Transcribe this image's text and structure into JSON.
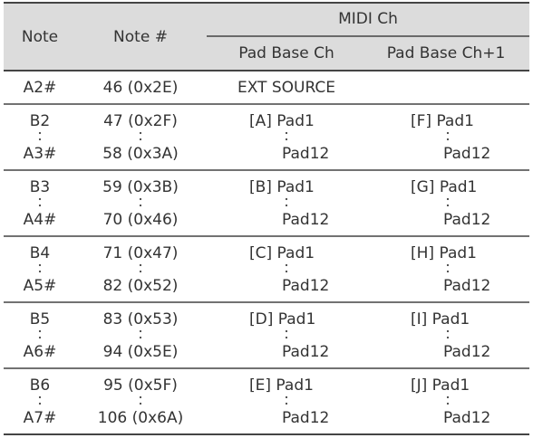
{
  "table": {
    "header": {
      "note": "Note",
      "note_num": "Note #",
      "midi_ch": "MIDI Ch",
      "pad_base_ch": "Pad Base Ch",
      "pad_base_ch1": "Pad Base Ch+1"
    },
    "first_row": [
      "A2#",
      "46 (0x2E)",
      "EXT SOURCE"
    ],
    "rows": [
      [
        "B2",
        "A3#",
        "47 (0x2F)",
        "58 (0x3A)",
        "[A] Pad1",
        "Pad12",
        "[F] Pad1",
        "Pad12"
      ],
      [
        "B3",
        "A4#",
        "59 (0x3B)",
        "70 (0x46)",
        "[B] Pad1",
        "Pad12",
        "[G] Pad1",
        "Pad12"
      ],
      [
        "B4",
        "A5#",
        "71 (0x47)",
        "82 (0x52)",
        "[C] Pad1",
        "Pad12",
        "[H] Pad1",
        "Pad12"
      ],
      [
        "B5",
        "A6#",
        "83 (0x53)",
        "94 (0x5E)",
        "[D] Pad1",
        "Pad12",
        "[I] Pad1",
        "Pad12"
      ],
      [
        "B6",
        "A7#",
        "95 (0x5F)",
        "106 (0x6A)",
        "[E] Pad1",
        "Pad12",
        "[J] Pad1",
        "Pad12"
      ]
    ]
  }
}
